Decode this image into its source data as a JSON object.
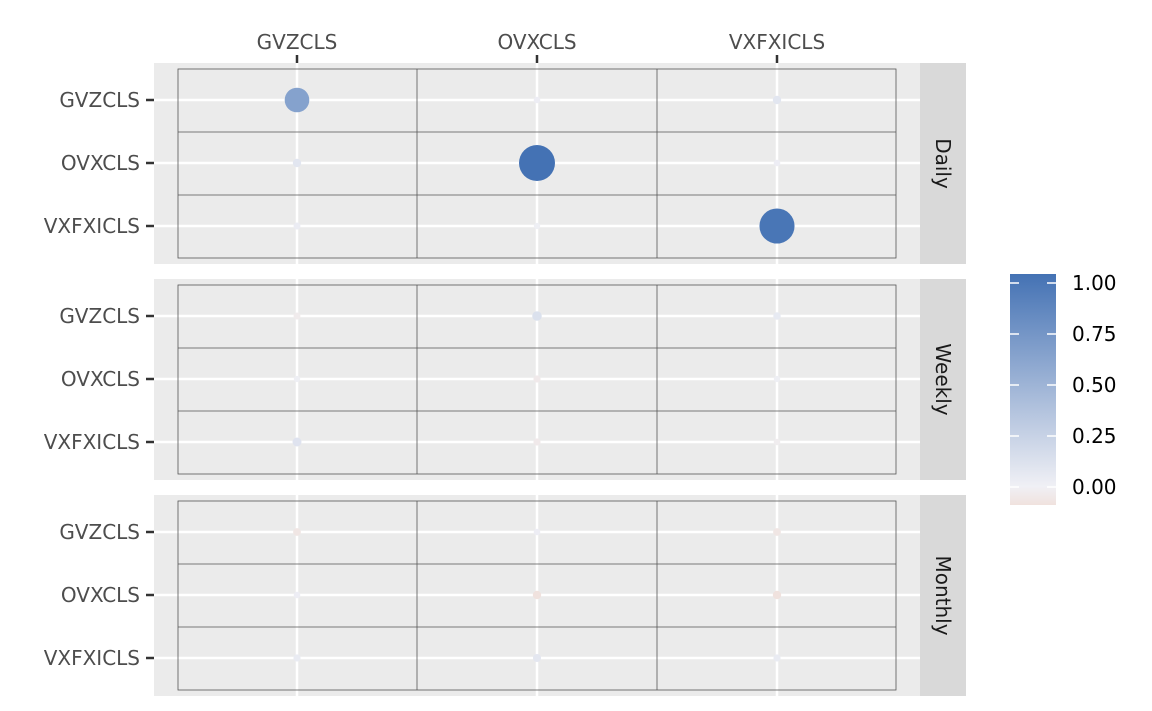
{
  "chart_data": {
    "type": "scatter",
    "x_categories": [
      "GVZCLS",
      "OVXCLS",
      "VXFXICLS"
    ],
    "y_categories": [
      "GVZCLS",
      "OVXCLS",
      "VXFXICLS"
    ],
    "panels": [
      {
        "label": "Daily",
        "values": [
          [
            0.62,
            0.02,
            0.08
          ],
          [
            0.08,
            1.0,
            0.02
          ],
          [
            0.03,
            0.01,
            0.97
          ]
        ]
      },
      {
        "label": "Weekly",
        "values": [
          [
            -0.03,
            0.12,
            0.05
          ],
          [
            0.01,
            -0.04,
            0.01
          ],
          [
            0.1,
            -0.04,
            -0.02
          ]
        ]
      },
      {
        "label": "Monthly",
        "values": [
          [
            -0.06,
            0.02,
            -0.06
          ],
          [
            0.02,
            -0.08,
            -0.08
          ],
          [
            0.04,
            0.07,
            0.04
          ]
        ]
      }
    ],
    "legend": {
      "placement": "right",
      "ticks": [
        1.0,
        0.75,
        0.5,
        0.25,
        0.0
      ],
      "tick_labels": [
        "1.00",
        "0.75",
        "0.50",
        "0.25",
        "0.00"
      ],
      "range": [
        -0.08,
        1.0
      ],
      "colors": {
        "high": "#4472b4",
        "mid": "#f0f0f5",
        "low": "#f0e2de"
      }
    },
    "panel_background": "#ebebeb",
    "strip_background": "#d9d9d9",
    "grid": true
  }
}
